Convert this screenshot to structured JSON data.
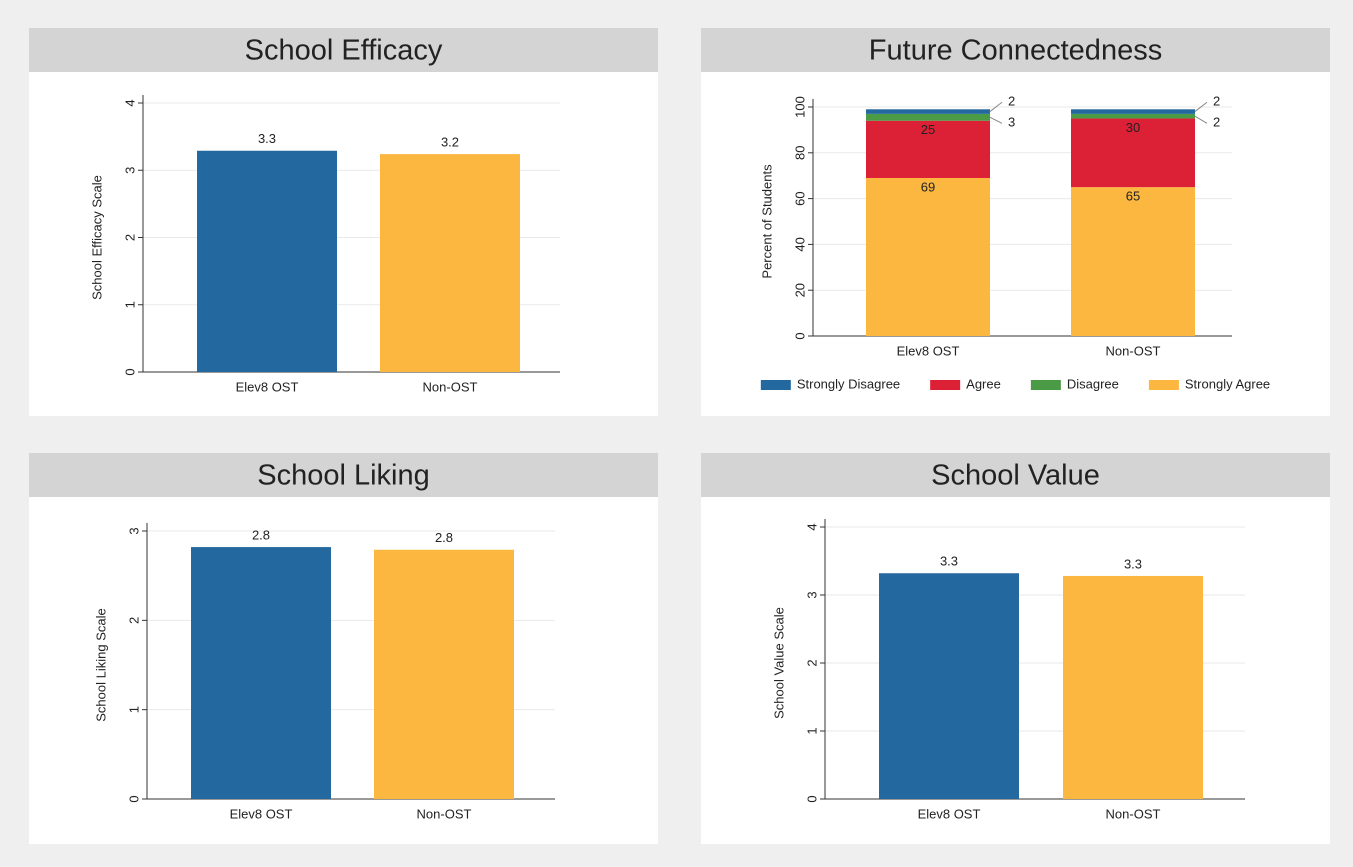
{
  "chart_data": [
    {
      "type": "bar",
      "title": "School Efficacy",
      "ylabel": "School Efficacy Scale",
      "categories": [
        "Elev8 OST",
        "Non-OST"
      ],
      "values": [
        3.29,
        3.24
      ],
      "value_labels": [
        "3.3",
        "3.2"
      ],
      "colors": [
        "#2369a0",
        "#fbb73f"
      ],
      "ylim": [
        0,
        4
      ],
      "yticks": [
        0,
        1,
        2,
        3,
        4
      ],
      "grid": true
    },
    {
      "type": "stacked_bar",
      "title": "Future Connectedness",
      "ylabel": "Percent of Students",
      "categories": [
        "Elev8 OST",
        "Non-OST"
      ],
      "series": [
        {
          "name": "Strongly Disagree",
          "color": "#2369a0",
          "values": [
            2,
            2
          ]
        },
        {
          "name": "Agree",
          "color": "#dc2036",
          "values": [
            25,
            30
          ]
        },
        {
          "name": "Disagree",
          "color": "#4b9a45",
          "values": [
            3,
            2
          ]
        },
        {
          "name": "Strongly Agree",
          "color": "#fbb73f",
          "values": [
            69,
            65
          ]
        }
      ],
      "stack_order": [
        3,
        1,
        2,
        0
      ],
      "ylim": [
        0,
        100
      ],
      "yticks": [
        0,
        20,
        40,
        60,
        80,
        100
      ],
      "grid": true,
      "legend": "bottom"
    },
    {
      "type": "bar",
      "title": "School Liking",
      "ylabel": "School Liking Scale",
      "categories": [
        "Elev8 OST",
        "Non-OST"
      ],
      "values": [
        2.82,
        2.79
      ],
      "value_labels": [
        "2.8",
        "2.8"
      ],
      "colors": [
        "#2369a0",
        "#fbb73f"
      ],
      "ylim": [
        0,
        3
      ],
      "yticks": [
        0,
        1,
        2,
        3
      ],
      "grid": true
    },
    {
      "type": "bar",
      "title": "School Value",
      "ylabel": "School Value Scale",
      "categories": [
        "Elev8 OST",
        "Non-OST"
      ],
      "values": [
        3.32,
        3.28
      ],
      "value_labels": [
        "3.3",
        "3.3"
      ],
      "colors": [
        "#2369a0",
        "#fbb73f"
      ],
      "ylim": [
        0,
        4
      ],
      "yticks": [
        0,
        1,
        2,
        3,
        4
      ],
      "grid": true
    }
  ]
}
